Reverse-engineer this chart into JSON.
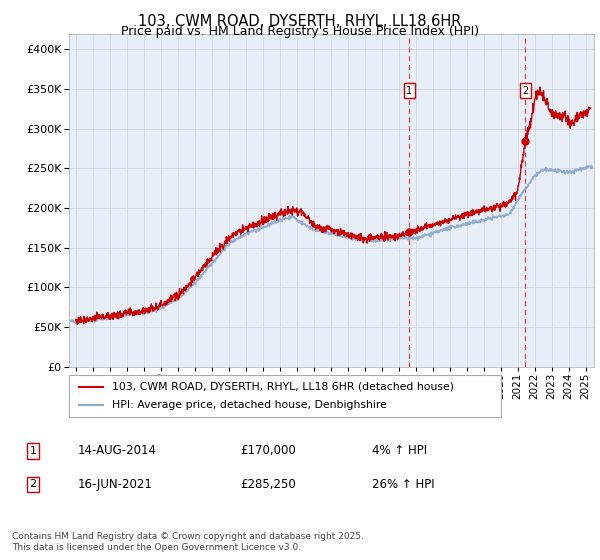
{
  "title": "103, CWM ROAD, DYSERTH, RHYL, LL18 6HR",
  "subtitle": "Price paid vs. HM Land Registry's House Price Index (HPI)",
  "ylim": [
    0,
    420000
  ],
  "xlim_start": 1994.6,
  "xlim_end": 2025.5,
  "red_line_label": "103, CWM ROAD, DYSERTH, RHYL, LL18 6HR (detached house)",
  "blue_line_label": "HPI: Average price, detached house, Denbighshire",
  "transaction1_label": "1",
  "transaction1_date": "14-AUG-2014",
  "transaction1_price": "£170,000",
  "transaction1_hpi": "4% ↑ HPI",
  "transaction2_label": "2",
  "transaction2_date": "16-JUN-2021",
  "transaction2_price": "£285,250",
  "transaction2_hpi": "26% ↑ HPI",
  "transaction1_x": 2014.617,
  "transaction1_y": 170000,
  "transaction2_x": 2021.46,
  "transaction2_y": 285250,
  "footer": "Contains HM Land Registry data © Crown copyright and database right 2025.\nThis data is licensed under the Open Government Licence v3.0.",
  "background_color": "#ffffff",
  "grid_color": "#d0d8e8",
  "plot_bg_color": "#e8eef8",
  "red_color": "#cc0000",
  "blue_color": "#88aacc",
  "dashed_line_color": "#cc4444"
}
